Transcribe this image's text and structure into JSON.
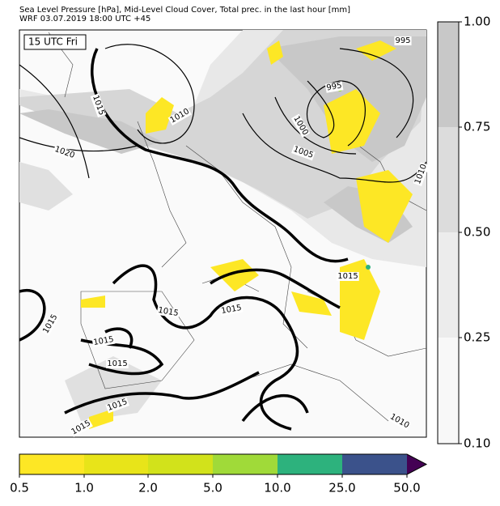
{
  "header": {
    "title": "Sea Level Pressure [hPa], Mid-Level Cloud Cover, Total prec. in the last hour [mm]",
    "subtitle": "WRF 03.07.2019 18:00 UTC +45"
  },
  "time_label": "15 UTC Fri",
  "isobar_labels": [
    "995",
    "995",
    "1000",
    "1005",
    "1010",
    "1010",
    "1010",
    "1015",
    "1020",
    "1015",
    "1015",
    "1015",
    "1015",
    "1015",
    "1015",
    "1015",
    "1015"
  ],
  "cloud_colorbar": {
    "labels": [
      "1.00",
      "0.75",
      "0.50",
      "0.25",
      "0.10"
    ]
  },
  "precip_colorbar": {
    "labels": [
      "0.5",
      "1.0",
      "2.0",
      "5.0",
      "10.0",
      "25.0",
      "50.0"
    ]
  }
}
